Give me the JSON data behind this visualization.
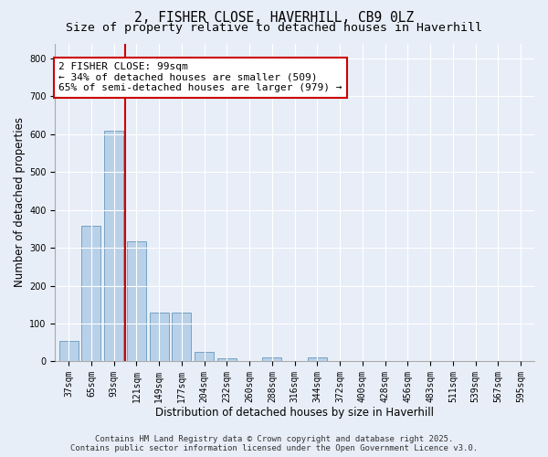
{
  "title_line1": "2, FISHER CLOSE, HAVERHILL, CB9 0LZ",
  "title_line2": "Size of property relative to detached houses in Haverhill",
  "xlabel": "Distribution of detached houses by size in Haverhill",
  "ylabel": "Number of detached properties",
  "categories": [
    "37sqm",
    "65sqm",
    "93sqm",
    "121sqm",
    "149sqm",
    "177sqm",
    "204sqm",
    "232sqm",
    "260sqm",
    "288sqm",
    "316sqm",
    "344sqm",
    "372sqm",
    "400sqm",
    "428sqm",
    "456sqm",
    "483sqm",
    "511sqm",
    "539sqm",
    "567sqm",
    "595sqm"
  ],
  "values": [
    55,
    358,
    610,
    318,
    128,
    128,
    25,
    8,
    0,
    10,
    0,
    10,
    0,
    0,
    0,
    0,
    0,
    0,
    0,
    0,
    0
  ],
  "bar_color": "#b8d0e8",
  "bar_edge_color": "#6699bb",
  "vline_color": "#cc0000",
  "vline_index": 2,
  "ylim": [
    0,
    840
  ],
  "yticks": [
    0,
    100,
    200,
    300,
    400,
    500,
    600,
    700,
    800
  ],
  "annotation_text": "2 FISHER CLOSE: 99sqm\n← 34% of detached houses are smaller (509)\n65% of semi-detached houses are larger (979) →",
  "annotation_box_facecolor": "#ffffff",
  "annotation_box_edgecolor": "#cc0000",
  "footer_text": "Contains HM Land Registry data © Crown copyright and database right 2025.\nContains public sector information licensed under the Open Government Licence v3.0.",
  "bg_color": "#e8eef8",
  "plot_bg_color": "#e8eef8",
  "grid_color": "#ffffff",
  "title_fontsize": 10.5,
  "subtitle_fontsize": 9.5,
  "axis_label_fontsize": 8.5,
  "tick_fontsize": 7,
  "annotation_fontsize": 8,
  "footer_fontsize": 6.5
}
